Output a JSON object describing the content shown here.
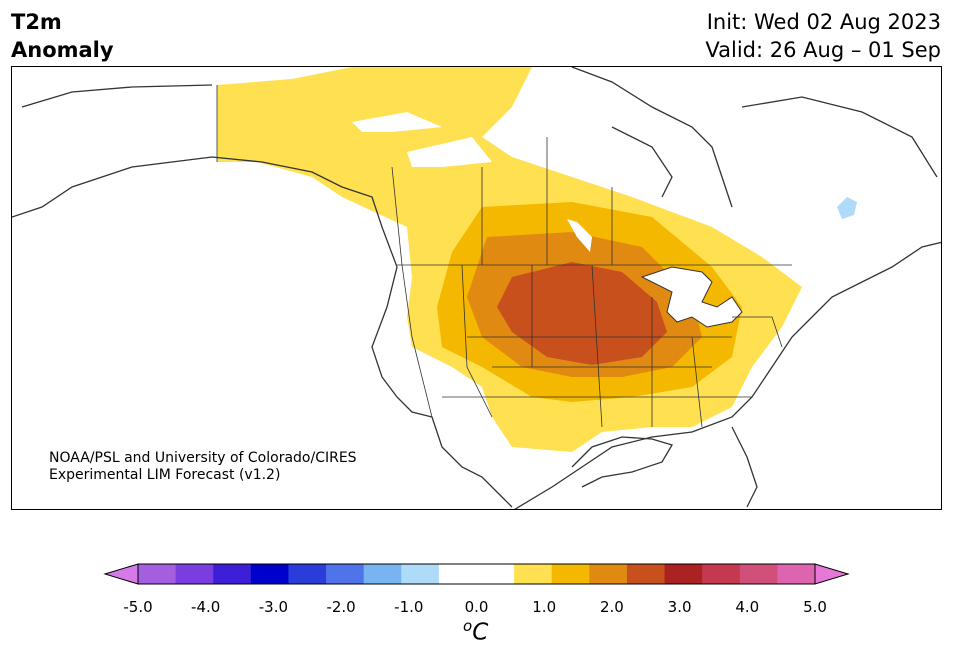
{
  "header": {
    "title_line1": "T2m",
    "title_line2": "Anomaly",
    "init_text": "Init: Wed 02 Aug 2023",
    "valid_text": "Valid: 26 Aug – 01 Sep"
  },
  "map": {
    "region": "North America",
    "credit_line1": "NOAA/PSL and University of Colorado/CIRES",
    "credit_line2": "Experimental LIM Forecast (v1.2)",
    "max_anomaly_celsius": 2.5,
    "min_anomaly_celsius": -1.0
  },
  "colorbar": {
    "unit_text": "C",
    "unit_sup": "o",
    "ticks": [
      "-5.0",
      "-4.0",
      "-3.0",
      "-2.0",
      "-1.0",
      "0.0",
      "1.0",
      "2.0",
      "3.0",
      "4.0",
      "5.0"
    ],
    "under_color": "#d67ae8",
    "over_color": "#e878d8",
    "colors": [
      "#a35fe0",
      "#7a3ee0",
      "#3c1fd6",
      "#0000cc",
      "#2a3ddb",
      "#4f73e8",
      "#78b4f2",
      "#aedcf8",
      "#ffffff",
      "#ffffff",
      "#ffe050",
      "#f5b800",
      "#e08a12",
      "#c8501c",
      "#aa2222",
      "#c43850",
      "#d0507a",
      "#dd65b0"
    ]
  }
}
